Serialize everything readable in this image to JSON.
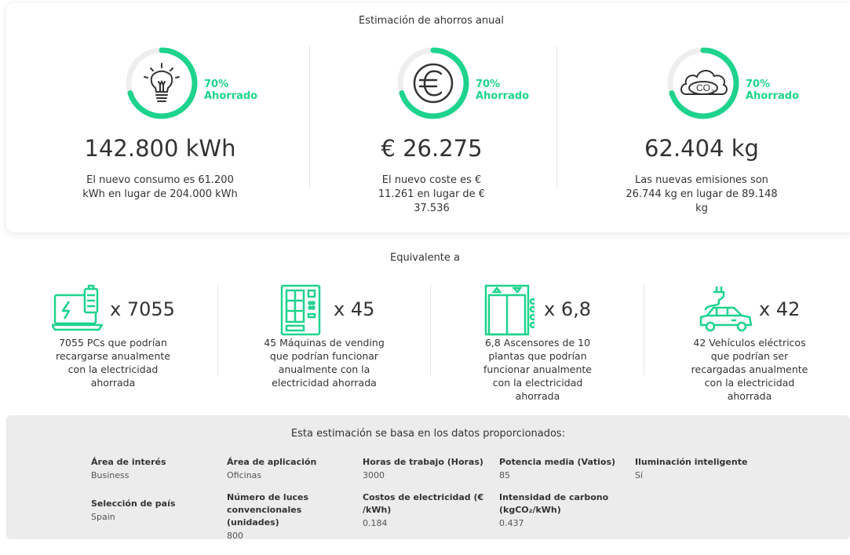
{
  "summary": {
    "title": "Estimación de ahorros anual",
    "metrics": [
      {
        "icon": "lightbulb-icon",
        "percent": "70%",
        "percent_label": "Ahorrado",
        "value": "142.800 kWh",
        "desc": "El nuevo consumo es 61.200 kWh en lugar de 204.000 kWh"
      },
      {
        "icon": "euro-icon",
        "percent": "70%",
        "percent_label": "Ahorrado",
        "value": "€ 26.275",
        "desc": "El nuevo coste es € 11.261 en lugar de € 37.536"
      },
      {
        "icon": "co2-cloud-icon",
        "percent": "70%",
        "percent_label": "Ahorrado",
        "value": "62.404 kg",
        "desc": "Las nuevas emisiones son 26.744 kg en lugar de 89.148 kg"
      }
    ],
    "gauge_fraction": 0.7
  },
  "equivalents": {
    "title": "Equivalente a",
    "items": [
      {
        "icon": "laptop-battery-icon",
        "multiplier": "x 7055",
        "desc": "7055 PCs que podrían recargarse anualmente con la electricidad ahorrada"
      },
      {
        "icon": "vending-machine-icon",
        "multiplier": "x 45",
        "desc": "45 Máquinas de vending que podrían funcionar anualmente con la electricidad ahorrada"
      },
      {
        "icon": "elevator-icon",
        "multiplier": "x 6,8",
        "desc": "6,8 Ascensores de 10 plantas que podrían funcionar anualmente con la electricidad ahorrada"
      },
      {
        "icon": "electric-car-icon",
        "multiplier": "x 42",
        "desc": "42 Vehículos eléctricos que podrían ser recargadas anualmente con la electricidad ahorrada"
      }
    ]
  },
  "inputs": {
    "title": "Esta estimación se basa en los datos proporcionados:",
    "fields": [
      {
        "label": "Área de interés",
        "value": "Business"
      },
      {
        "label": "Área de aplicación",
        "value": "Oficinas"
      },
      {
        "label": "Horas de trabajo (Horas)",
        "value": "3000"
      },
      {
        "label": "Potencia media (Vatios)",
        "value": "85"
      },
      {
        "label": "Iluminación inteligente",
        "value": "Sí"
      },
      {
        "label": "Selección de país",
        "value": "Spain"
      },
      {
        "label": "Número de luces convencionales (unidades)",
        "value": "800"
      },
      {
        "label": "Costos de electricidad (€ /kWh)",
        "value": "0.184"
      },
      {
        "label": "Intensidad de carbono (kgCO₂/kWh)",
        "value": "0.437"
      }
    ]
  },
  "colors": {
    "accent": "#1ed38c",
    "track": "#eeeeee",
    "text": "#333333"
  }
}
